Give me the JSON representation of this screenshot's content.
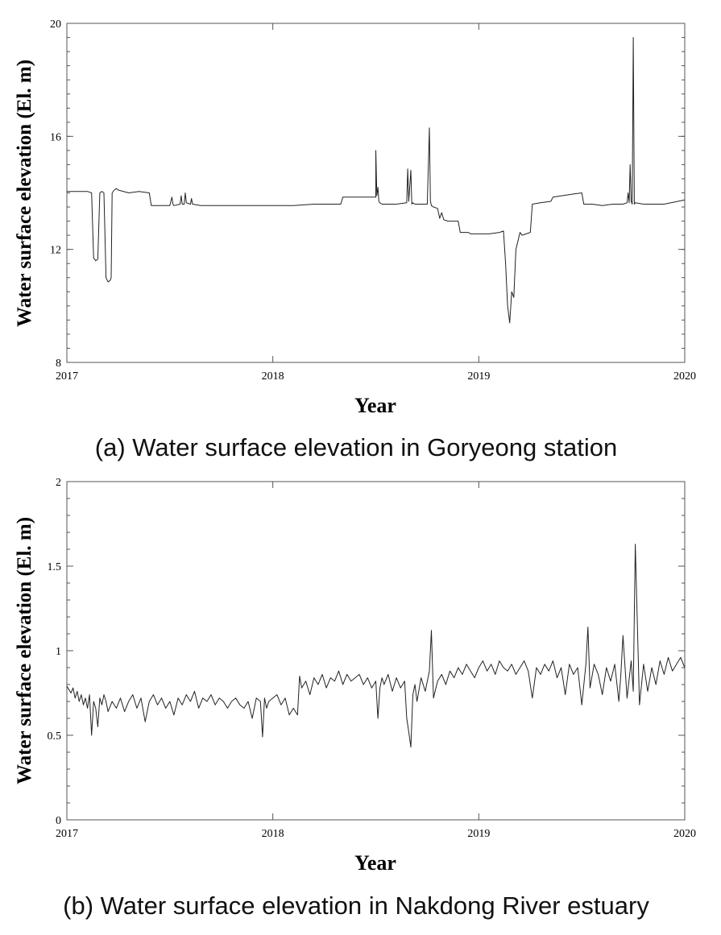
{
  "chart_data": [
    {
      "type": "line",
      "id": "a",
      "caption": "(a) Water surface elevation in Goryeong station",
      "xlabel": "Year",
      "ylabel": "Water surface elevation (El. m)",
      "xlim": [
        2017,
        2020
      ],
      "ylim": [
        8,
        20
      ],
      "xticks": [
        2017,
        2018,
        2019,
        2020
      ],
      "xtick_labels": [
        "2017",
        "2018",
        "2019",
        "2020"
      ],
      "yticks": [
        8,
        12,
        16,
        20
      ],
      "ytick_labels": [
        "8",
        "12",
        "16",
        "20"
      ],
      "minor_y_step": 0.5,
      "series": [
        {
          "name": "Goryeong station",
          "x": [
            2017.0,
            2017.1,
            2017.12,
            2017.13,
            2017.14,
            2017.15,
            2017.16,
            2017.17,
            2017.18,
            2017.19,
            2017.2,
            2017.21,
            2017.215,
            2017.22,
            2017.23,
            2017.24,
            2017.25,
            2017.3,
            2017.35,
            2017.4,
            2017.41,
            2017.5,
            2017.51,
            2017.515,
            2017.52,
            2017.55,
            2017.555,
            2017.56,
            2017.57,
            2017.575,
            2017.58,
            2017.6,
            2017.605,
            2017.61,
            2017.65,
            2017.7,
            2017.8,
            2017.9,
            2018.0,
            2018.1,
            2018.2,
            2018.3,
            2018.33,
            2018.34,
            2018.4,
            2018.45,
            2018.5,
            2018.5,
            2018.505,
            2018.51,
            2018.515,
            2018.52,
            2018.53,
            2018.6,
            2018.65,
            2018.655,
            2018.66,
            2018.67,
            2018.675,
            2018.68,
            2018.69,
            2018.7,
            2018.75,
            2018.76,
            2018.765,
            2018.77,
            2018.78,
            2018.8,
            2018.81,
            2018.82,
            2018.83,
            2018.85,
            2018.9,
            2018.91,
            2018.95,
            2018.96,
            2019.0,
            2019.05,
            2019.1,
            2019.12,
            2019.13,
            2019.14,
            2019.15,
            2019.16,
            2019.17,
            2019.18,
            2019.2,
            2019.21,
            2019.25,
            2019.26,
            2019.3,
            2019.35,
            2019.36,
            2019.45,
            2019.5,
            2019.51,
            2019.55,
            2019.6,
            2019.65,
            2019.7,
            2019.72,
            2019.725,
            2019.73,
            2019.735,
            2019.74,
            2019.745,
            2019.75,
            2019.755,
            2019.76,
            2019.8,
            2019.9,
            2020.0
          ],
          "y": [
            14.05,
            14.05,
            14.0,
            11.7,
            11.6,
            11.65,
            14.0,
            14.05,
            14.0,
            11.0,
            10.85,
            10.9,
            11.0,
            14.0,
            14.1,
            14.15,
            14.1,
            14.0,
            14.05,
            14.0,
            13.55,
            13.55,
            13.85,
            13.6,
            13.55,
            13.6,
            13.9,
            13.6,
            13.6,
            14.0,
            13.65,
            13.6,
            13.8,
            13.6,
            13.55,
            13.55,
            13.55,
            13.55,
            13.55,
            13.55,
            13.6,
            13.6,
            13.6,
            13.85,
            13.85,
            13.85,
            13.85,
            15.5,
            13.9,
            14.2,
            13.7,
            13.65,
            13.6,
            13.6,
            13.65,
            14.85,
            13.7,
            14.8,
            13.6,
            13.65,
            13.6,
            13.6,
            13.6,
            16.3,
            13.7,
            13.55,
            13.5,
            13.45,
            13.1,
            13.3,
            13.05,
            13.0,
            13.0,
            12.6,
            12.6,
            12.55,
            12.55,
            12.55,
            12.6,
            12.65,
            11.5,
            10.0,
            9.4,
            10.5,
            10.3,
            12.0,
            12.6,
            12.5,
            12.6,
            13.6,
            13.65,
            13.7,
            13.85,
            13.95,
            14.0,
            13.6,
            13.6,
            13.55,
            13.6,
            13.6,
            13.65,
            14.0,
            13.65,
            15.0,
            13.7,
            13.6,
            19.5,
            13.6,
            13.65,
            13.6,
            13.6,
            13.75
          ]
        }
      ]
    },
    {
      "type": "line",
      "id": "b",
      "caption": "(b) Water surface elevation in Nakdong River estuary",
      "xlabel": "Year",
      "ylabel": "Water surface elevation (El. m)",
      "xlim": [
        2017,
        2020
      ],
      "ylim": [
        0,
        2
      ],
      "xticks": [
        2017,
        2018,
        2019,
        2020
      ],
      "xtick_labels": [
        "2017",
        "2018",
        "2019",
        "2020"
      ],
      "yticks": [
        0,
        0.5,
        1,
        1.5,
        2
      ],
      "ytick_labels": [
        "0",
        "0.5",
        "1",
        "1.5",
        "2"
      ],
      "minor_y_step": 0.1,
      "series": [
        {
          "name": "Nakdong River estuary",
          "x": [
            2017.0,
            2017.01,
            2017.02,
            2017.03,
            2017.04,
            2017.05,
            2017.06,
            2017.07,
            2017.08,
            2017.09,
            2017.1,
            2017.11,
            2017.12,
            2017.13,
            2017.14,
            2017.15,
            2017.16,
            2017.17,
            2017.18,
            2017.19,
            2017.2,
            2017.22,
            2017.24,
            2017.26,
            2017.28,
            2017.3,
            2017.32,
            2017.34,
            2017.36,
            2017.38,
            2017.4,
            2017.42,
            2017.44,
            2017.46,
            2017.48,
            2017.5,
            2017.52,
            2017.54,
            2017.56,
            2017.58,
            2017.6,
            2017.62,
            2017.64,
            2017.66,
            2017.68,
            2017.7,
            2017.72,
            2017.74,
            2017.76,
            2017.78,
            2017.8,
            2017.82,
            2017.84,
            2017.86,
            2017.88,
            2017.9,
            2017.92,
            2017.94,
            2017.95,
            2017.96,
            2017.97,
            2017.98,
            2018.0,
            2018.02,
            2018.04,
            2018.06,
            2018.08,
            2018.1,
            2018.12,
            2018.13,
            2018.14,
            2018.16,
            2018.18,
            2018.2,
            2018.22,
            2018.24,
            2018.26,
            2018.28,
            2018.3,
            2018.32,
            2018.34,
            2018.36,
            2018.38,
            2018.4,
            2018.42,
            2018.44,
            2018.46,
            2018.48,
            2018.5,
            2018.51,
            2018.52,
            2018.53,
            2018.54,
            2018.56,
            2018.58,
            2018.6,
            2018.62,
            2018.64,
            2018.65,
            2018.66,
            2018.67,
            2018.68,
            2018.69,
            2018.7,
            2018.72,
            2018.74,
            2018.76,
            2018.77,
            2018.78,
            2018.8,
            2018.82,
            2018.84,
            2018.86,
            2018.88,
            2018.9,
            2018.92,
            2018.94,
            2018.96,
            2018.98,
            2019.0,
            2019.02,
            2019.04,
            2019.06,
            2019.08,
            2019.1,
            2019.12,
            2019.14,
            2019.16,
            2019.18,
            2019.2,
            2019.22,
            2019.24,
            2019.26,
            2019.28,
            2019.3,
            2019.32,
            2019.34,
            2019.36,
            2019.38,
            2019.4,
            2019.42,
            2019.44,
            2019.46,
            2019.48,
            2019.5,
            2019.52,
            2019.53,
            2019.54,
            2019.56,
            2019.58,
            2019.6,
            2019.62,
            2019.64,
            2019.66,
            2019.68,
            2019.69,
            2019.7,
            2019.72,
            2019.74,
            2019.75,
            2019.76,
            2019.78,
            2019.8,
            2019.82,
            2019.84,
            2019.86,
            2019.88,
            2019.9,
            2019.92,
            2019.94,
            2019.96,
            2019.98,
            2020.0
          ],
          "y": [
            0.79,
            0.77,
            0.75,
            0.78,
            0.72,
            0.76,
            0.7,
            0.74,
            0.68,
            0.72,
            0.66,
            0.74,
            0.5,
            0.7,
            0.66,
            0.55,
            0.72,
            0.68,
            0.74,
            0.7,
            0.64,
            0.7,
            0.66,
            0.72,
            0.64,
            0.7,
            0.74,
            0.66,
            0.72,
            0.58,
            0.7,
            0.74,
            0.68,
            0.72,
            0.66,
            0.7,
            0.62,
            0.72,
            0.68,
            0.74,
            0.7,
            0.76,
            0.66,
            0.72,
            0.7,
            0.74,
            0.68,
            0.72,
            0.7,
            0.66,
            0.7,
            0.72,
            0.68,
            0.66,
            0.7,
            0.6,
            0.72,
            0.7,
            0.49,
            0.72,
            0.66,
            0.7,
            0.72,
            0.74,
            0.68,
            0.72,
            0.62,
            0.66,
            0.62,
            0.85,
            0.78,
            0.82,
            0.74,
            0.84,
            0.8,
            0.86,
            0.78,
            0.84,
            0.82,
            0.88,
            0.8,
            0.86,
            0.82,
            0.84,
            0.86,
            0.8,
            0.84,
            0.78,
            0.82,
            0.6,
            0.78,
            0.84,
            0.8,
            0.86,
            0.76,
            0.84,
            0.78,
            0.82,
            0.6,
            0.52,
            0.43,
            0.74,
            0.8,
            0.7,
            0.84,
            0.76,
            0.88,
            1.12,
            0.72,
            0.82,
            0.86,
            0.8,
            0.88,
            0.84,
            0.9,
            0.86,
            0.92,
            0.88,
            0.84,
            0.9,
            0.94,
            0.88,
            0.92,
            0.86,
            0.94,
            0.9,
            0.88,
            0.92,
            0.86,
            0.9,
            0.94,
            0.88,
            0.72,
            0.9,
            0.86,
            0.92,
            0.88,
            0.94,
            0.84,
            0.9,
            0.74,
            0.92,
            0.86,
            0.9,
            0.68,
            0.92,
            1.14,
            0.78,
            0.92,
            0.86,
            0.74,
            0.9,
            0.82,
            0.92,
            0.7,
            0.86,
            1.09,
            0.72,
            0.94,
            0.76,
            1.63,
            0.68,
            0.92,
            0.76,
            0.9,
            0.8,
            0.94,
            0.86,
            0.96,
            0.88,
            0.92,
            0.96,
            0.9
          ]
        }
      ]
    }
  ]
}
